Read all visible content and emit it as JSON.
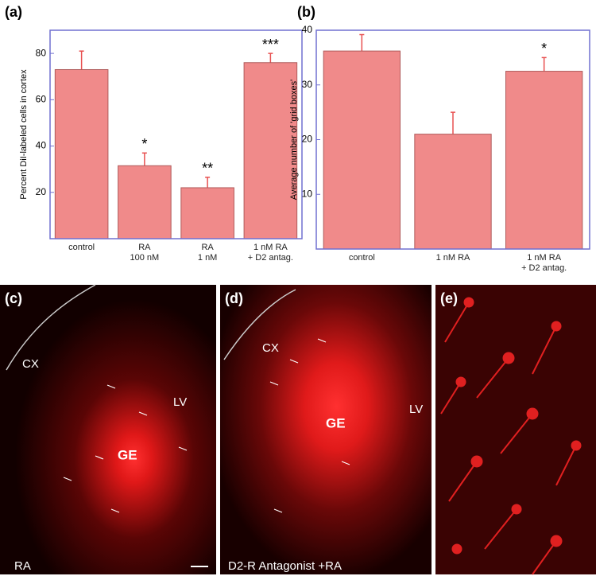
{
  "chart_data": [
    {
      "type": "bar",
      "title": "(a)",
      "y_label": "Percent DiI-labeled cells in cortex",
      "categories": [
        "control",
        "RA\n100 nM",
        "RA\n1 nM",
        "1 nM RA\n+ D2 antag."
      ],
      "values": [
        73,
        31.5,
        22,
        76
      ],
      "errors": [
        8,
        5.5,
        4.5,
        4
      ],
      "significance": [
        null,
        "*",
        "**",
        "***"
      ],
      "color": "#f08a8a",
      "ylim": [
        0,
        90
      ],
      "yticks": [
        20,
        40,
        60,
        80
      ]
    },
    {
      "type": "bar",
      "title": "(b)",
      "y_label": "Average number of 'grid boxes'",
      "categories": [
        "control",
        "1 nM RA",
        "1 nM RA\n+ D2 antag."
      ],
      "values": [
        36.2,
        21,
        32.5
      ],
      "errors": [
        3,
        4,
        2.5
      ],
      "significance": [
        null,
        null,
        "*"
      ],
      "color": "#f08a8a",
      "ylim": [
        0,
        40
      ],
      "yticks": [
        10,
        20,
        30,
        40
      ]
    }
  ],
  "image_panels": [
    {
      "label": "(c)",
      "annotations": [
        "CX",
        "LV",
        "GE",
        "RA"
      ]
    },
    {
      "label": "(d)",
      "annotations": [
        "CX",
        "GE",
        "LV",
        "D2-R Antagonist +RA"
      ]
    },
    {
      "label": "(e)",
      "annotations": []
    }
  ]
}
